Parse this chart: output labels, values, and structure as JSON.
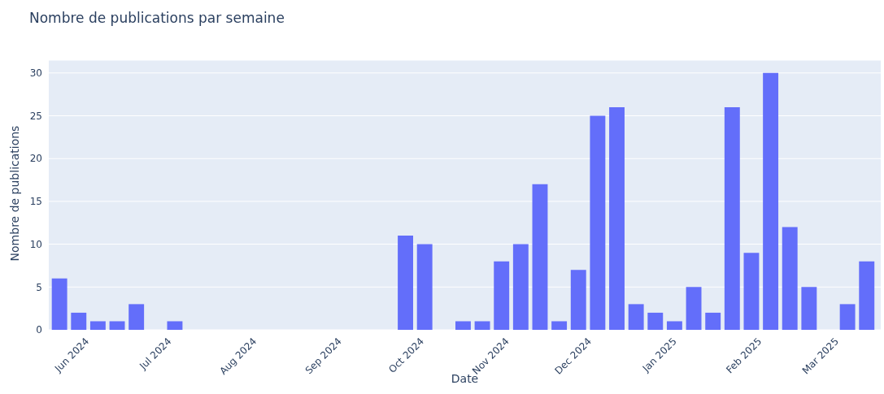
{
  "chart_data": {
    "type": "bar",
    "title": "Nombre de publications par semaine",
    "xlabel": "Date",
    "ylabel": "Nombre de publications",
    "x": [
      "2024-05-22",
      "2024-05-29",
      "2024-06-05",
      "2024-06-12",
      "2024-06-19",
      "2024-07-03",
      "2024-09-25",
      "2024-10-02",
      "2024-10-16",
      "2024-10-23",
      "2024-10-30",
      "2024-11-06",
      "2024-11-13",
      "2024-11-20",
      "2024-11-27",
      "2024-12-04",
      "2024-12-11",
      "2024-12-18",
      "2024-12-25",
      "2025-01-01",
      "2025-01-08",
      "2025-01-15",
      "2025-01-22",
      "2025-01-29",
      "2025-02-05",
      "2025-02-12",
      "2025-02-19",
      "2025-03-05",
      "2025-03-12"
    ],
    "values": [
      6,
      2,
      1,
      1,
      3,
      1,
      11,
      10,
      1,
      1,
      8,
      10,
      17,
      1,
      7,
      25,
      26,
      3,
      2,
      1,
      5,
      2,
      26,
      9,
      30,
      12,
      5,
      3,
      8
    ],
    "color": "#636efa",
    "xlim": [
      "2024-05-18",
      "2025-03-17"
    ],
    "xticks": [
      {
        "value": "2024-06",
        "label": "Jun 2024"
      },
      {
        "value": "2024-07",
        "label": "Jul 2024"
      },
      {
        "value": "2024-08",
        "label": "Aug 2024"
      },
      {
        "value": "2024-09",
        "label": "Sep 2024"
      },
      {
        "value": "2024-10",
        "label": "Oct 2024"
      },
      {
        "value": "2024-11",
        "label": "Nov 2024"
      },
      {
        "value": "2024-12",
        "label": "Dec 2024"
      },
      {
        "value": "2025-01",
        "label": "Jan 2025"
      },
      {
        "value": "2025-02",
        "label": "Feb 2025"
      },
      {
        "value": "2025-03",
        "label": "Mar 2025"
      }
    ],
    "ylim": [
      0,
      31.5
    ],
    "yticks": [
      0,
      5,
      10,
      15,
      20,
      25,
      30
    ],
    "grid": "y",
    "legend": false
  }
}
